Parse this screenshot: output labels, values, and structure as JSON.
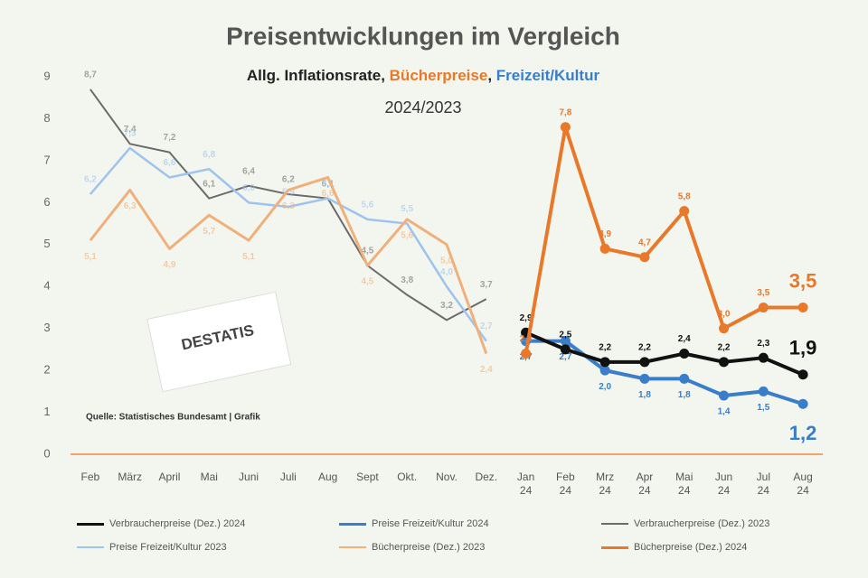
{
  "chart_data": {
    "type": "line",
    "title": "Preisentwicklungen im  Vergleich",
    "subtitle_parts": [
      {
        "text": "Allg. Inflationsrate, ",
        "color": "#222222"
      },
      {
        "text": "Bücherpreise",
        "color": "#e8782a"
      },
      {
        "text": ", ",
        "color": "#222222"
      },
      {
        "text": "Freizeit/Kultur",
        "color": "#3a7dc9"
      }
    ],
    "subtitle2": "2024/2023",
    "note": "Quelle: Statistisches Bundesamt | Grafik",
    "logo": "DESTATIS",
    "categories": [
      "Feb",
      "März",
      "April",
      "Mai",
      "Juni",
      "Juli",
      "Aug",
      "Sept",
      "Okt.",
      "Nov.",
      "Dez.",
      "Jan 24",
      "Feb 24",
      "Mrz 24",
      "Apr 24",
      "Mai 24",
      "Jun 24",
      "Jul 24",
      "Aug 24"
    ],
    "ylim": [
      0,
      9
    ],
    "yticks": [
      0,
      1,
      2,
      3,
      4,
      5,
      6,
      7,
      8,
      9
    ],
    "grid": false,
    "series": [
      {
        "name": "Verbraucherpreise (Dez.) 2024",
        "color": "#111111",
        "width": 4,
        "markers": true,
        "label_pos": "above",
        "values": [
          null,
          null,
          null,
          null,
          null,
          null,
          null,
          null,
          null,
          null,
          null,
          2.9,
          2.5,
          2.2,
          2.2,
          2.4,
          2.2,
          2.3,
          1.9
        ],
        "value_labels": [
          null,
          null,
          null,
          null,
          null,
          null,
          null,
          null,
          null,
          null,
          null,
          "2,9",
          "2,5",
          "2,2",
          "2,2",
          "2,4",
          "2,2",
          "2,3",
          "1,9"
        ]
      },
      {
        "name": "Preise Freizeit/Kultur 2024",
        "color": "#3a7dc9",
        "width": 4,
        "markers": true,
        "label_pos": "below",
        "values": [
          null,
          null,
          null,
          null,
          null,
          null,
          null,
          null,
          null,
          null,
          null,
          2.7,
          2.7,
          2.0,
          1.8,
          1.8,
          1.4,
          1.5,
          1.2
        ],
        "value_labels": [
          null,
          null,
          null,
          null,
          null,
          null,
          null,
          null,
          null,
          null,
          null,
          "2,7",
          "2,7",
          "2,0",
          "1,8",
          "1,8",
          "1,4",
          "1,5",
          "1,2"
        ]
      },
      {
        "name": "Verbraucherpreise (Dez.) 2023",
        "color": "#6b6b6b",
        "width": 2,
        "markers": false,
        "label_pos": "above",
        "values": [
          8.7,
          7.4,
          7.2,
          6.1,
          6.4,
          6.2,
          6.1,
          4.5,
          3.8,
          3.2,
          3.7,
          null,
          null,
          null,
          null,
          null,
          null,
          null,
          null
        ],
        "value_labels": [
          "8,7",
          "7,4",
          "7,2",
          "6,1",
          "6,4",
          "6,2",
          "6,1",
          "4,5",
          "3,8",
          "3,2",
          "3,7",
          null,
          null,
          null,
          null,
          null,
          null,
          null,
          null
        ]
      },
      {
        "name": "Preise Freizeit/Kultur 2023",
        "color": "#9ec3ee",
        "width": 2.5,
        "markers": false,
        "label_pos": "above",
        "values": [
          6.2,
          7.3,
          6.6,
          6.8,
          6.0,
          5.9,
          6.1,
          5.6,
          5.5,
          4.0,
          2.7,
          null,
          null,
          null,
          null,
          null,
          null,
          null,
          null
        ],
        "value_labels": [
          "6,2",
          "7,3",
          "6,6",
          "6,8",
          "6,0",
          "5,9",
          "6,1",
          "5,6",
          "5,5",
          "4,0",
          "2,7",
          null,
          null,
          null,
          null,
          null,
          null,
          null,
          null
        ]
      },
      {
        "name": "Bücherpreise (Dez.) 2023",
        "color": "#f0b07c",
        "width": 3,
        "markers": false,
        "label_pos": "below",
        "values": [
          5.1,
          6.3,
          4.9,
          5.7,
          5.1,
          6.3,
          6.6,
          4.5,
          5.6,
          5.0,
          2.4,
          null,
          null,
          null,
          null,
          null,
          null,
          null,
          null
        ],
        "value_labels": [
          "5,1",
          "6,3",
          "4,9",
          "5,7",
          "5,1",
          "6,3",
          "6,6",
          "4,5",
          "5,6",
          "5,0",
          "2,4",
          null,
          null,
          null,
          null,
          null,
          null,
          null,
          null
        ]
      },
      {
        "name": "Bücherpreise (Dez.) 2024",
        "color": "#e8782a",
        "width": 4,
        "markers": true,
        "label_pos": "above",
        "values": [
          null,
          null,
          null,
          null,
          null,
          null,
          null,
          null,
          null,
          null,
          null,
          2.4,
          7.8,
          4.9,
          4.7,
          5.8,
          3.0,
          3.5,
          3.5
        ],
        "value_labels": [
          null,
          null,
          null,
          null,
          null,
          null,
          null,
          null,
          null,
          null,
          null,
          "2,4",
          "7,8",
          "4,9",
          "4,7",
          "5,8",
          "3,0",
          "3,5",
          "3,5"
        ]
      }
    ]
  }
}
